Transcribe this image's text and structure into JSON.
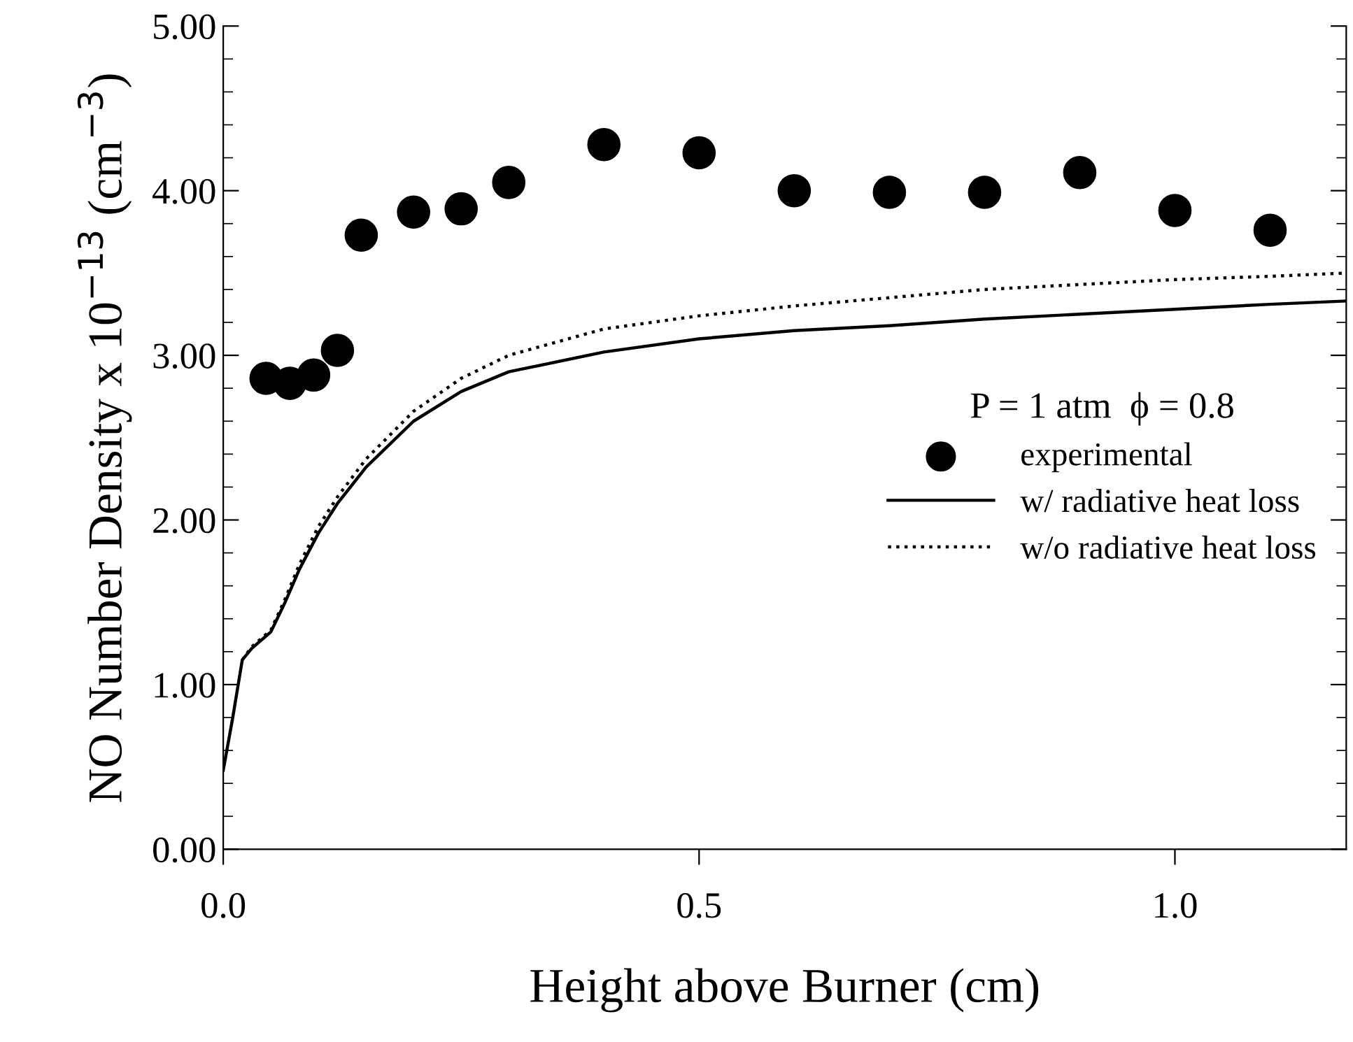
{
  "chart_data": {
    "type": "scatter",
    "xlabel": "Height above Burner (cm)",
    "ylabel": "NO Number Density x 10$^{−13}$ (cm$^{−3}$)",
    "legend_title": "P = 1 atm  ϕ = 0.8",
    "legend": "right",
    "xlim": [
      0,
      1.18
    ],
    "xticks": [
      {
        "value": 0,
        "label": "0.0"
      },
      {
        "value": 0.5,
        "label": "0.5"
      },
      {
        "value": 1.0,
        "label": "1.0"
      }
    ],
    "ylim": [
      0,
      5
    ],
    "yticks": [
      {
        "value": 0,
        "label": "0.00"
      },
      {
        "value": 1,
        "label": "1.00"
      },
      {
        "value": 2,
        "label": "2.00"
      },
      {
        "value": 3,
        "label": "3.00"
      },
      {
        "value": 4,
        "label": "4.00"
      },
      {
        "value": 5,
        "label": "5.00"
      }
    ],
    "grid": false,
    "series": [
      {
        "name": "experimental",
        "marker": "circle",
        "color": "#000000",
        "x": [
          0.045,
          0.07,
          0.095,
          0.12,
          0.145,
          0.2,
          0.25,
          0.3,
          0.4,
          0.5,
          0.6,
          0.7,
          0.8,
          0.9,
          1.0,
          1.1
        ],
        "values": [
          2.86,
          2.83,
          2.88,
          3.03,
          3.73,
          3.87,
          3.89,
          4.05,
          4.28,
          4.23,
          4.0,
          3.99,
          3.99,
          4.11,
          3.88,
          3.76
        ]
      },
      {
        "name": "w/ radiative heat loss",
        "type": "line",
        "line_style": "solid",
        "color": "#000000",
        "x": [
          0,
          0.01,
          0.02,
          0.03,
          0.05,
          0.065,
          0.08,
          0.1,
          0.12,
          0.15,
          0.2,
          0.25,
          0.3,
          0.4,
          0.5,
          0.6,
          0.7,
          0.8,
          0.9,
          1.0,
          1.1,
          1.18
        ],
        "values": [
          0.48,
          0.8,
          1.15,
          1.22,
          1.32,
          1.5,
          1.7,
          1.92,
          2.1,
          2.32,
          2.6,
          2.78,
          2.9,
          3.02,
          3.1,
          3.15,
          3.18,
          3.22,
          3.25,
          3.28,
          3.31,
          3.33
        ]
      },
      {
        "name": "w/o radiative heat loss",
        "type": "line",
        "line_style": "dotted",
        "color": "#000000",
        "x": [
          0.02,
          0.03,
          0.05,
          0.065,
          0.08,
          0.1,
          0.12,
          0.15,
          0.2,
          0.25,
          0.3,
          0.4,
          0.5,
          0.6,
          0.7,
          0.8,
          0.9,
          1.0,
          1.1,
          1.18
        ],
        "values": [
          1.15,
          1.23,
          1.33,
          1.52,
          1.73,
          1.96,
          2.14,
          2.37,
          2.66,
          2.86,
          3.0,
          3.16,
          3.24,
          3.3,
          3.35,
          3.4,
          3.43,
          3.46,
          3.48,
          3.5
        ]
      }
    ]
  }
}
